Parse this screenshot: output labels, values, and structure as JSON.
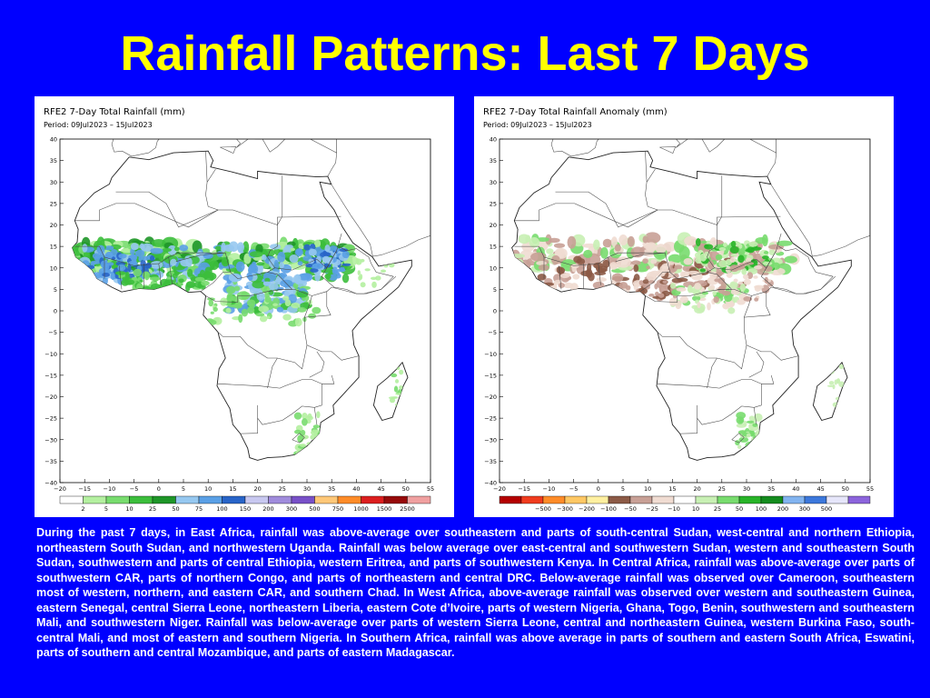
{
  "page": {
    "title": "Rainfall Patterns: Last 7 Days",
    "background_color": "#0000ff",
    "title_color": "#ffff00"
  },
  "maps": [
    {
      "name": "total-rainfall",
      "title": "RFE2 7-Day Total Rainfall (mm)",
      "period": "Period: 09Jul2023 – 15Jul2023",
      "lat_ticks": [
        "40",
        "35",
        "30",
        "25",
        "20",
        "15",
        "10",
        "5",
        "0",
        "−5",
        "−10",
        "−15",
        "−20",
        "−25",
        "−30",
        "−35",
        "−40"
      ],
      "lon_ticks": [
        "−20",
        "−15",
        "−10",
        "−5",
        "0",
        "5",
        "10",
        "15",
        "20",
        "25",
        "30",
        "35",
        "40",
        "45",
        "50",
        "55"
      ],
      "lon_range": [
        -20,
        55
      ],
      "lat_range": [
        -40,
        40
      ],
      "legend_labels": [
        "2",
        "5",
        "10",
        "25",
        "50",
        "75",
        "100",
        "150",
        "200",
        "300",
        "500",
        "750",
        "1000",
        "1500",
        "2500"
      ],
      "legend_colors": [
        "#ffffff",
        "#b4f0a0",
        "#78dc6e",
        "#3cbe3c",
        "#1e9628",
        "#96c8f0",
        "#5aa0e6",
        "#2864c8",
        "#c8c8f0",
        "#a08cdc",
        "#7850c8",
        "#ffc878",
        "#ff8c28",
        "#dc1e1e",
        "#960a0a",
        "#f0a0a0"
      ]
    },
    {
      "name": "rainfall-anomaly",
      "title": "RFE2 7-Day Total Rainfall Anomaly (mm)",
      "period": "Period: 09Jul2023 – 15Jul2023",
      "lat_ticks": [
        "40",
        "35",
        "30",
        "25",
        "20",
        "15",
        "10",
        "5",
        "0",
        "−5",
        "−10",
        "−15",
        "−20",
        "−25",
        "−30",
        "−35",
        "−40"
      ],
      "lon_ticks": [
        "−20",
        "−15",
        "−10",
        "−5",
        "0",
        "5",
        "10",
        "15",
        "20",
        "25",
        "30",
        "35",
        "40",
        "45",
        "50",
        "55"
      ],
      "lon_range": [
        -20,
        55
      ],
      "lat_range": [
        -40,
        40
      ],
      "legend_labels": [
        "−500",
        "−300",
        "−200",
        "−100",
        "−50",
        "−25",
        "−10",
        "10",
        "25",
        "50",
        "100",
        "200",
        "300",
        "500"
      ],
      "legend_colors": [
        "#b40000",
        "#f03c1e",
        "#ff8c28",
        "#ffc864",
        "#fff0a0",
        "#8c5a46",
        "#c8a096",
        "#f0dcd2",
        "#ffffff",
        "#c8f0b4",
        "#78dc6e",
        "#28b428",
        "#148c1e",
        "#82b4f0",
        "#3c78dc",
        "#e6e6fa",
        "#8c64dc"
      ]
    }
  ],
  "caption": "During the past 7 days, in East Africa, rainfall was above-average over southeastern and parts of south-central Sudan, west-central and northern Ethiopia, northeastern South Sudan, and northwestern Uganda. Rainfall was below average over east-central and southwestern Sudan, western and southeastern South Sudan, southwestern and parts of central Ethiopia, western Eritrea, and parts of southwestern Kenya. In Central Africa, rainfall was above-average over parts of southwestern CAR, parts of northern Congo, and parts of northeastern and central DRC. Below-average rainfall was observed over Cameroon, southeastern most of western, northern, and eastern CAR, and southern Chad. In West Africa, above-average rainfall was observed over western and southeastern Guinea, eastern Senegal, central Sierra Leone, northeastern Liberia, eastern Cote d’Ivoire, parts of western Nigeria, Ghana, Togo, Benin, southwestern and southeastern Mali, and southwestern Niger. Rainfall was below-average over parts of western Sierra Leone, central and northeastern Guinea, western Burkina Faso, south-central Mali, and most of eastern and southern Nigeria. In Southern Africa, rainfall was above average in parts of southern and eastern South Africa, Eswatini, parts of southern and central Mozambique, and parts of eastern Madagascar."
}
